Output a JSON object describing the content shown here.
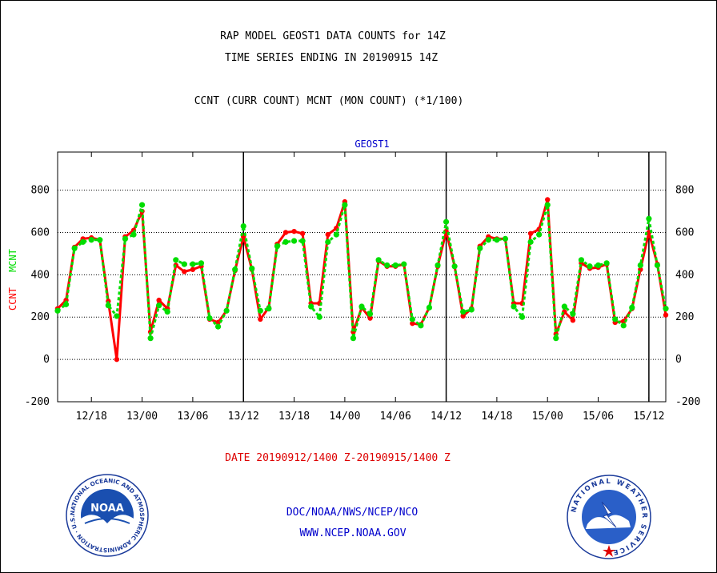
{
  "header": {
    "title_line1": "RAP MODEL GEOST1 DATA COUNTS for 14Z",
    "title_line2": "TIME SERIES ENDING IN 20190915 14Z",
    "subtitle": "CCNT (CURR COUNT) MCNT (MON COUNT) (*1/100)"
  },
  "footer": {
    "date_range": "DATE 20190912/1400 Z-20190915/1400 Z",
    "org": "DOC/NOAA/NWS/NCEP/NCO",
    "url": "WWW.NCEP.NOAA.GOV"
  },
  "logos": {
    "noaa_ring_text": "NATIONAL OCEANIC AND ATMOSPHERIC ADMINISTRATION · U.S. DEPARTMENT OF COMMERCE",
    "noaa_center": "NOAA",
    "nws_ring_text": "NATIONAL WEATHER SERVICE"
  },
  "colors": {
    "ccnt": "#ff0000",
    "mcnt": "#00dd00",
    "plot_label": "#0000cc",
    "date": "#dd0000"
  },
  "chart_data": {
    "type": "line",
    "title": "GEOST1",
    "ylabel_left_ccnt": "CCNT",
    "ylabel_left_mcnt": "MCNT",
    "ylim": [
      -200,
      980
    ],
    "yticks": [
      -200,
      0,
      200,
      400,
      600,
      800
    ],
    "x_tick_labels": [
      "12/18",
      "13/00",
      "13/06",
      "13/12",
      "13/18",
      "14/00",
      "14/06",
      "14/12",
      "14/18",
      "15/00",
      "15/06",
      "15/12"
    ],
    "x_tick_hours": [
      4,
      10,
      16,
      22,
      28,
      34,
      40,
      46,
      52,
      58,
      64,
      70
    ],
    "x_range_hours": [
      0,
      72
    ],
    "day_separators_hours": [
      22,
      46,
      70
    ],
    "grid": "horizontal dotted",
    "series": [
      {
        "name": "CCNT",
        "values": [
          240,
          280,
          530,
          570,
          575,
          565,
          275,
          0,
          580,
          610,
          700,
          130,
          280,
          240,
          445,
          415,
          425,
          440,
          190,
          175,
          230,
          420,
          580,
          425,
          190,
          245,
          545,
          600,
          605,
          595,
          265,
          265,
          590,
          620,
          745,
          130,
          245,
          195,
          465,
          440,
          440,
          450,
          170,
          165,
          245,
          440,
          605,
          440,
          205,
          240,
          535,
          580,
          570,
          570,
          265,
          265,
          595,
          615,
          755,
          120,
          225,
          185,
          455,
          430,
          435,
          450,
          175,
          180,
          240,
          425,
          600,
          450,
          210
        ]
      },
      {
        "name": "MCNT",
        "values": [
          230,
          260,
          525,
          555,
          565,
          565,
          255,
          205,
          570,
          590,
          730,
          100,
          255,
          225,
          470,
          450,
          450,
          455,
          195,
          155,
          230,
          425,
          630,
          430,
          230,
          240,
          535,
          555,
          560,
          560,
          250,
          200,
          555,
          590,
          730,
          100,
          250,
          215,
          470,
          445,
          445,
          450,
          190,
          160,
          245,
          445,
          650,
          440,
          225,
          235,
          525,
          565,
          565,
          570,
          250,
          200,
          555,
          590,
          730,
          100,
          250,
          215,
          470,
          440,
          445,
          455,
          190,
          160,
          245,
          445,
          665,
          445,
          240
        ]
      }
    ]
  }
}
